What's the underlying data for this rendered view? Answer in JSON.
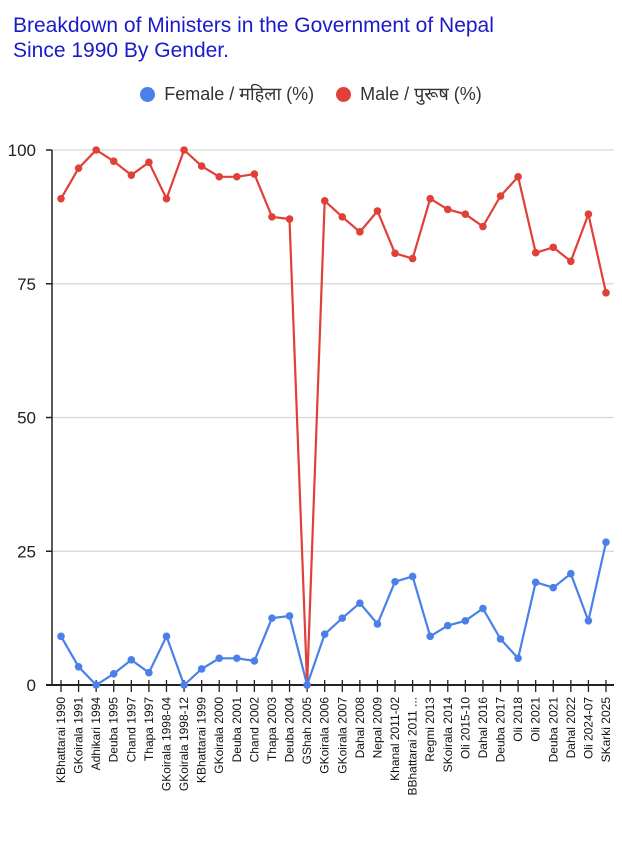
{
  "title_line1": "Breakdown of Ministers in the Government of Nepal",
  "title_line2": "Since 1990 By Gender.",
  "legend": [
    {
      "label": "Female / महिला (%)",
      "color": "#4a80e8"
    },
    {
      "label": "Male / पुरूष (%)",
      "color": "#e04038"
    }
  ],
  "chart_data": {
    "type": "line",
    "title": "Breakdown of Ministers in the Government of Nepal Since 1990 By Gender.",
    "xlabel": "",
    "ylabel": "",
    "ylim": [
      0,
      100
    ],
    "yticks": [
      0,
      25,
      50,
      75,
      100
    ],
    "grid": true,
    "legend_position": "top",
    "categories": [
      "KBhattarai 1990",
      "GKoirala 1991",
      "Adhikari 1994",
      "Deuba 1995",
      "Chand 1997",
      "Thapa 1997",
      "GKoirala 1998-04",
      "GKoirala 1998-12",
      "KBhattarai 1999",
      "GKoirala 2000",
      "Deuba 2001",
      "Chand 2002",
      "Thapa 2003",
      "Deuba 2004",
      "GShah 2005",
      "GKoirala 2006",
      "GKoirala 2007",
      "Dahal 2008",
      "Nepal 2009",
      "Khanal 2011-02",
      "BBhattarai 2011 ...",
      "Regmi 2013",
      "SKoirala 2014",
      "Oli 2015-10",
      "Dahal 2016",
      "Deuba 2017",
      "Oli 2018",
      "Oli 2021",
      "Deuba 2021",
      "Dahal 2022",
      "Oli 2024-07",
      "SKarki 2025"
    ],
    "series": [
      {
        "name": "Female / महिला (%)",
        "color": "#4a80e8",
        "values": [
          9.1,
          3.4,
          0,
          2.1,
          4.7,
          2.3,
          9.1,
          0,
          3.0,
          5.0,
          5.0,
          4.5,
          12.5,
          12.9,
          0,
          9.5,
          12.5,
          15.3,
          11.4,
          19.3,
          20.3,
          9.1,
          11.1,
          12.0,
          14.3,
          8.6,
          5.0,
          19.2,
          18.2,
          20.8,
          12.0,
          26.7
        ]
      },
      {
        "name": "Male / पुरूष (%)",
        "color": "#e04038",
        "values": [
          90.9,
          96.6,
          100,
          97.9,
          95.3,
          97.7,
          90.9,
          100,
          97.0,
          95.0,
          95.0,
          95.5,
          87.5,
          87.1,
          0,
          90.5,
          87.5,
          84.7,
          88.6,
          80.7,
          79.7,
          90.9,
          88.9,
          88.0,
          85.7,
          91.4,
          95.0,
          80.8,
          81.8,
          79.2,
          88.0,
          73.3
        ]
      }
    ]
  }
}
